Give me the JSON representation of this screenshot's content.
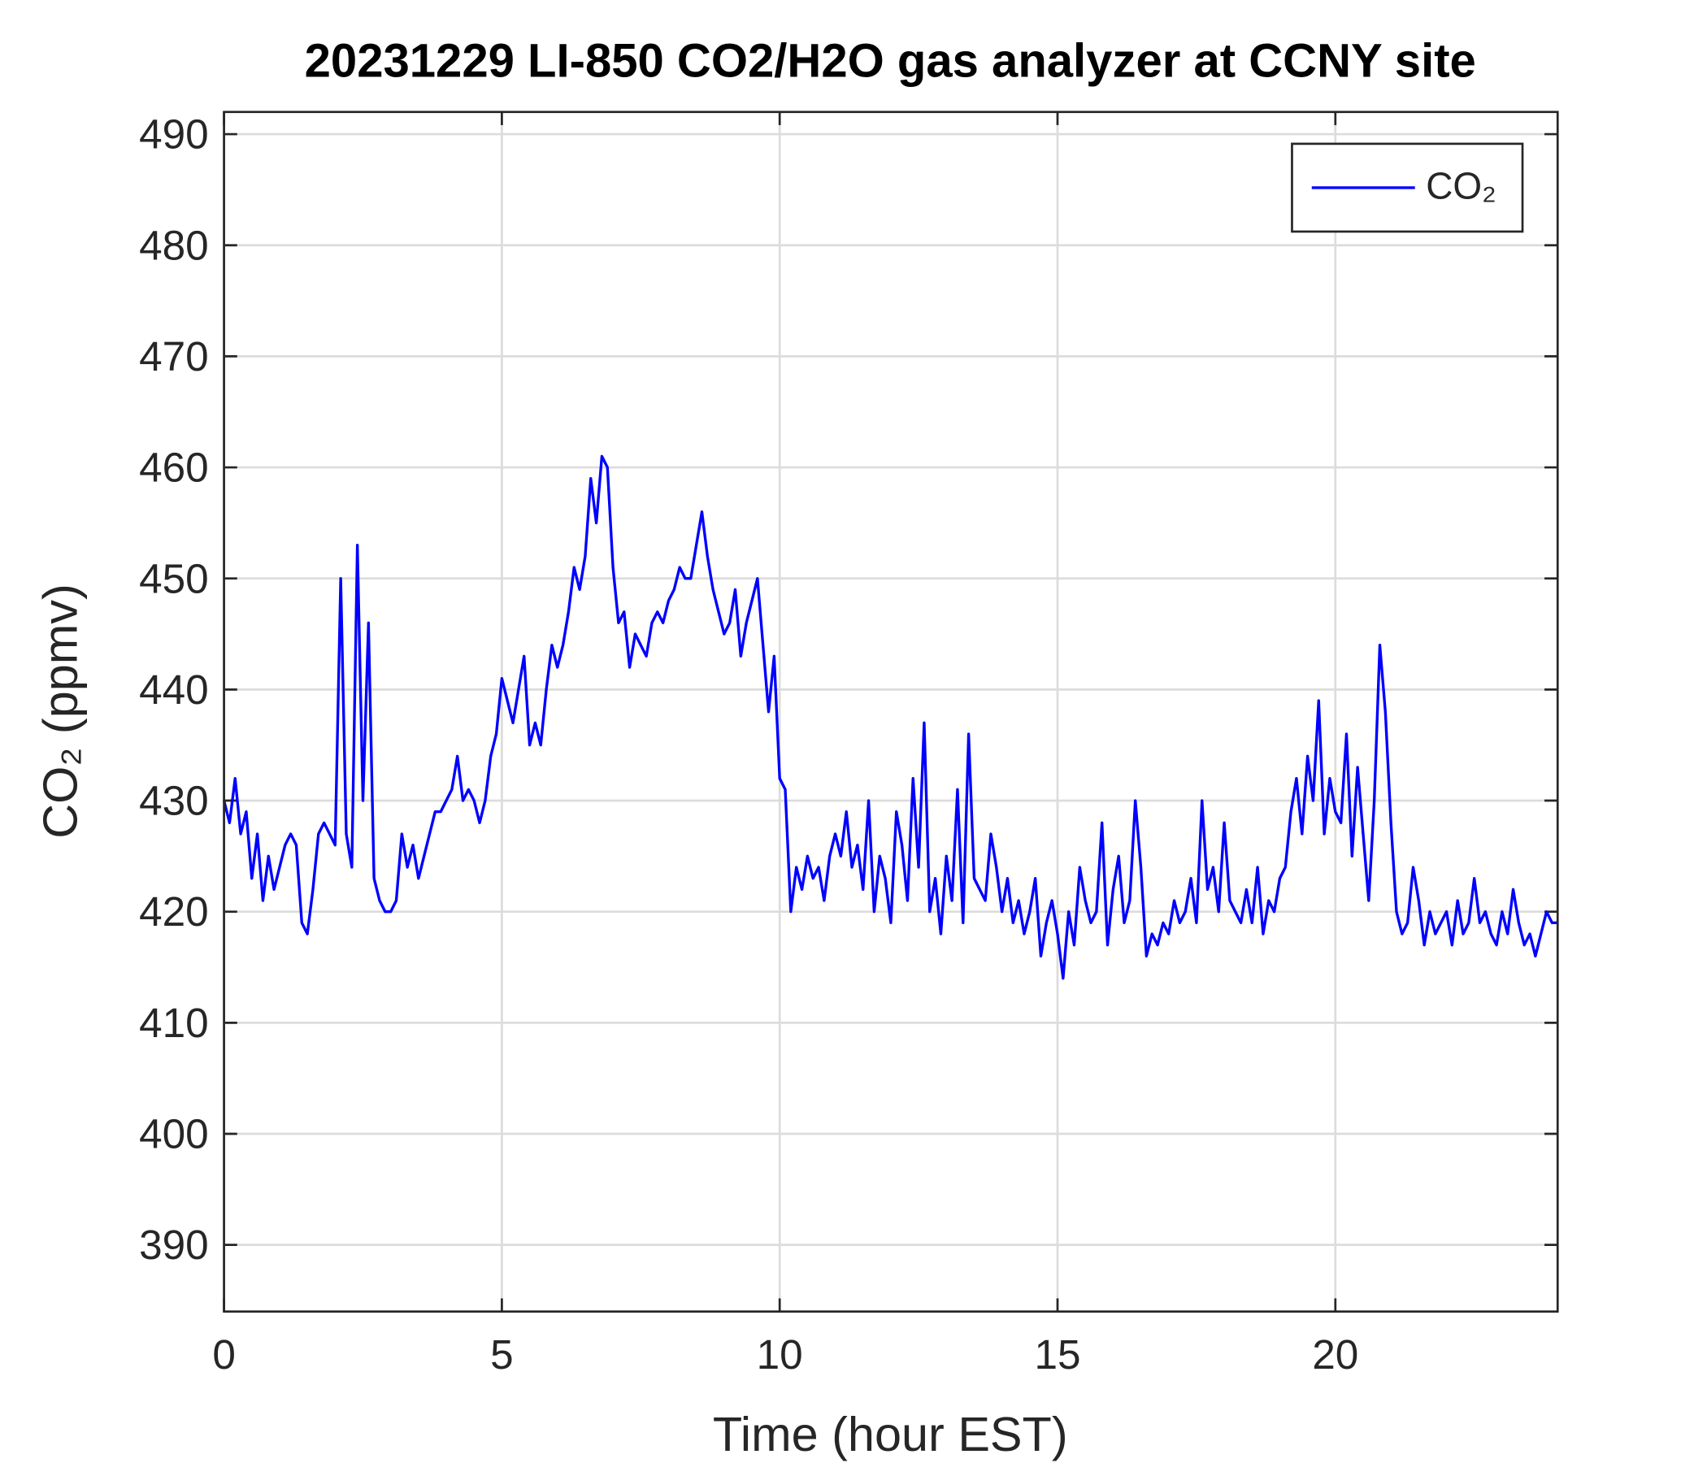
{
  "chart_data": {
    "type": "line",
    "title": "20231229 LI-850 CO2/H2O gas analyzer at CCNY site",
    "xlabel": "Time (hour EST)",
    "ylabel": "CO₂ (ppmv)",
    "xlim": [
      0,
      24
    ],
    "ylim": [
      384,
      492
    ],
    "xticks": [
      0,
      5,
      10,
      15,
      20
    ],
    "yticks": [
      390,
      400,
      410,
      420,
      430,
      440,
      450,
      460,
      470,
      480,
      490
    ],
    "grid": true,
    "legend": "upper right",
    "x": [
      0,
      0.1,
      0.2,
      0.3,
      0.4,
      0.5,
      0.6,
      0.7,
      0.8,
      0.9,
      1,
      1.1,
      1.2,
      1.3,
      1.4,
      1.5,
      1.6,
      1.7,
      1.8,
      1.9,
      2,
      2.1,
      2.2,
      2.3,
      2.4,
      2.5,
      2.6,
      2.7,
      2.8,
      2.9,
      3,
      3.1,
      3.2,
      3.3,
      3.4,
      3.5,
      3.6,
      3.7,
      3.8,
      3.9,
      4,
      4.1,
      4.2,
      4.3,
      4.4,
      4.5,
      4.6,
      4.7,
      4.8,
      4.9,
      5,
      5.1,
      5.2,
      5.3,
      5.4,
      5.5,
      5.6,
      5.7,
      5.8,
      5.9,
      6,
      6.1,
      6.2,
      6.3,
      6.4,
      6.5,
      6.6,
      6.7,
      6.8,
      6.9,
      7,
      7.1,
      7.2,
      7.3,
      7.4,
      7.5,
      7.6,
      7.7,
      7.8,
      7.9,
      8,
      8.1,
      8.2,
      8.3,
      8.4,
      8.5,
      8.6,
      8.7,
      8.8,
      8.9,
      9,
      9.1,
      9.2,
      9.3,
      9.4,
      9.5,
      9.6,
      9.7,
      9.8,
      9.9,
      10,
      10.1,
      10.2,
      10.3,
      10.4,
      10.5,
      10.6,
      10.7,
      10.8,
      10.9,
      11,
      11.1,
      11.2,
      11.3,
      11.4,
      11.5,
      11.6,
      11.7,
      11.8,
      11.9,
      12,
      12.1,
      12.2,
      12.3,
      12.4,
      12.5,
      12.6,
      12.7,
      12.8,
      12.9,
      13,
      13.1,
      13.2,
      13.3,
      13.4,
      13.5,
      13.6,
      13.7,
      13.8,
      13.9,
      14,
      14.1,
      14.2,
      14.3,
      14.4,
      14.5,
      14.6,
      14.7,
      14.8,
      14.9,
      15,
      15.1,
      15.2,
      15.3,
      15.4,
      15.5,
      15.6,
      15.7,
      15.8,
      15.9,
      16,
      16.1,
      16.2,
      16.3,
      16.4,
      16.5,
      16.6,
      16.7,
      16.8,
      16.9,
      17,
      17.1,
      17.2,
      17.3,
      17.4,
      17.5,
      17.6,
      17.7,
      17.8,
      17.9,
      18,
      18.1,
      18.2,
      18.3,
      18.4,
      18.5,
      18.6,
      18.7,
      18.8,
      18.9,
      19,
      19.1,
      19.2,
      19.3,
      19.4,
      19.5,
      19.6,
      19.7,
      19.8,
      19.9,
      20,
      20.1,
      20.2,
      20.3,
      20.4,
      20.5,
      20.6,
      20.7,
      20.8,
      20.9,
      21,
      21.1,
      21.2,
      21.3,
      21.4,
      21.5,
      21.6,
      21.7,
      21.8,
      21.9,
      22,
      22.1,
      22.2,
      22.3,
      22.4,
      22.5,
      22.6,
      22.7,
      22.8,
      22.9,
      23,
      23.1,
      23.2,
      23.3,
      23.4,
      23.5,
      23.6,
      23.7,
      23.8,
      23.9,
      24
    ],
    "series": [
      {
        "name": "CO₂",
        "color": "#0000ff",
        "values": [
          430,
          428,
          432,
          427,
          429,
          423,
          427,
          421,
          425,
          422,
          424,
          426,
          427,
          426,
          419,
          418,
          422,
          427,
          428,
          427,
          426,
          450,
          427,
          424,
          453,
          430,
          446,
          423,
          421,
          420,
          420,
          421,
          427,
          424,
          426,
          423,
          425,
          427,
          429,
          429,
          430,
          431,
          434,
          430,
          431,
          430,
          428,
          430,
          434,
          436,
          441,
          439,
          437,
          440,
          443,
          435,
          437,
          435,
          440,
          444,
          442,
          444,
          447,
          451,
          449,
          452,
          459,
          455,
          461,
          460,
          451,
          446,
          447,
          442,
          445,
          444,
          443,
          446,
          447,
          446,
          448,
          449,
          451,
          450,
          450,
          453,
          456,
          452,
          449,
          447,
          445,
          446,
          449,
          443,
          446,
          448,
          450,
          444,
          438,
          443,
          432,
          431,
          420,
          424,
          422,
          425,
          423,
          424,
          421,
          425,
          427,
          425,
          429,
          424,
          426,
          422,
          430,
          420,
          425,
          423,
          419,
          429,
          426,
          421,
          432,
          424,
          437,
          420,
          423,
          418,
          425,
          421,
          431,
          419,
          436,
          423,
          422,
          421,
          427,
          424,
          420,
          423,
          419,
          421,
          418,
          420,
          423,
          416,
          419,
          421,
          418,
          414,
          420,
          417,
          424,
          421,
          419,
          420,
          428,
          417,
          422,
          425,
          419,
          421,
          430,
          424,
          416,
          418,
          417,
          419,
          418,
          421,
          419,
          420,
          423,
          419,
          430,
          422,
          424,
          420,
          428,
          421,
          420,
          419,
          422,
          419,
          424,
          418,
          421,
          420,
          423,
          424,
          429,
          432,
          427,
          434,
          430,
          439,
          427,
          432,
          429,
          428,
          436,
          425,
          433,
          427,
          421,
          430,
          444,
          438,
          428,
          420,
          418,
          419,
          424,
          421,
          417,
          420,
          418,
          419,
          420,
          417,
          421,
          418,
          419,
          423,
          419,
          420,
          418,
          417,
          420,
          418,
          422,
          419,
          417,
          418,
          416,
          418,
          420,
          419,
          419
        ]
      }
    ]
  }
}
